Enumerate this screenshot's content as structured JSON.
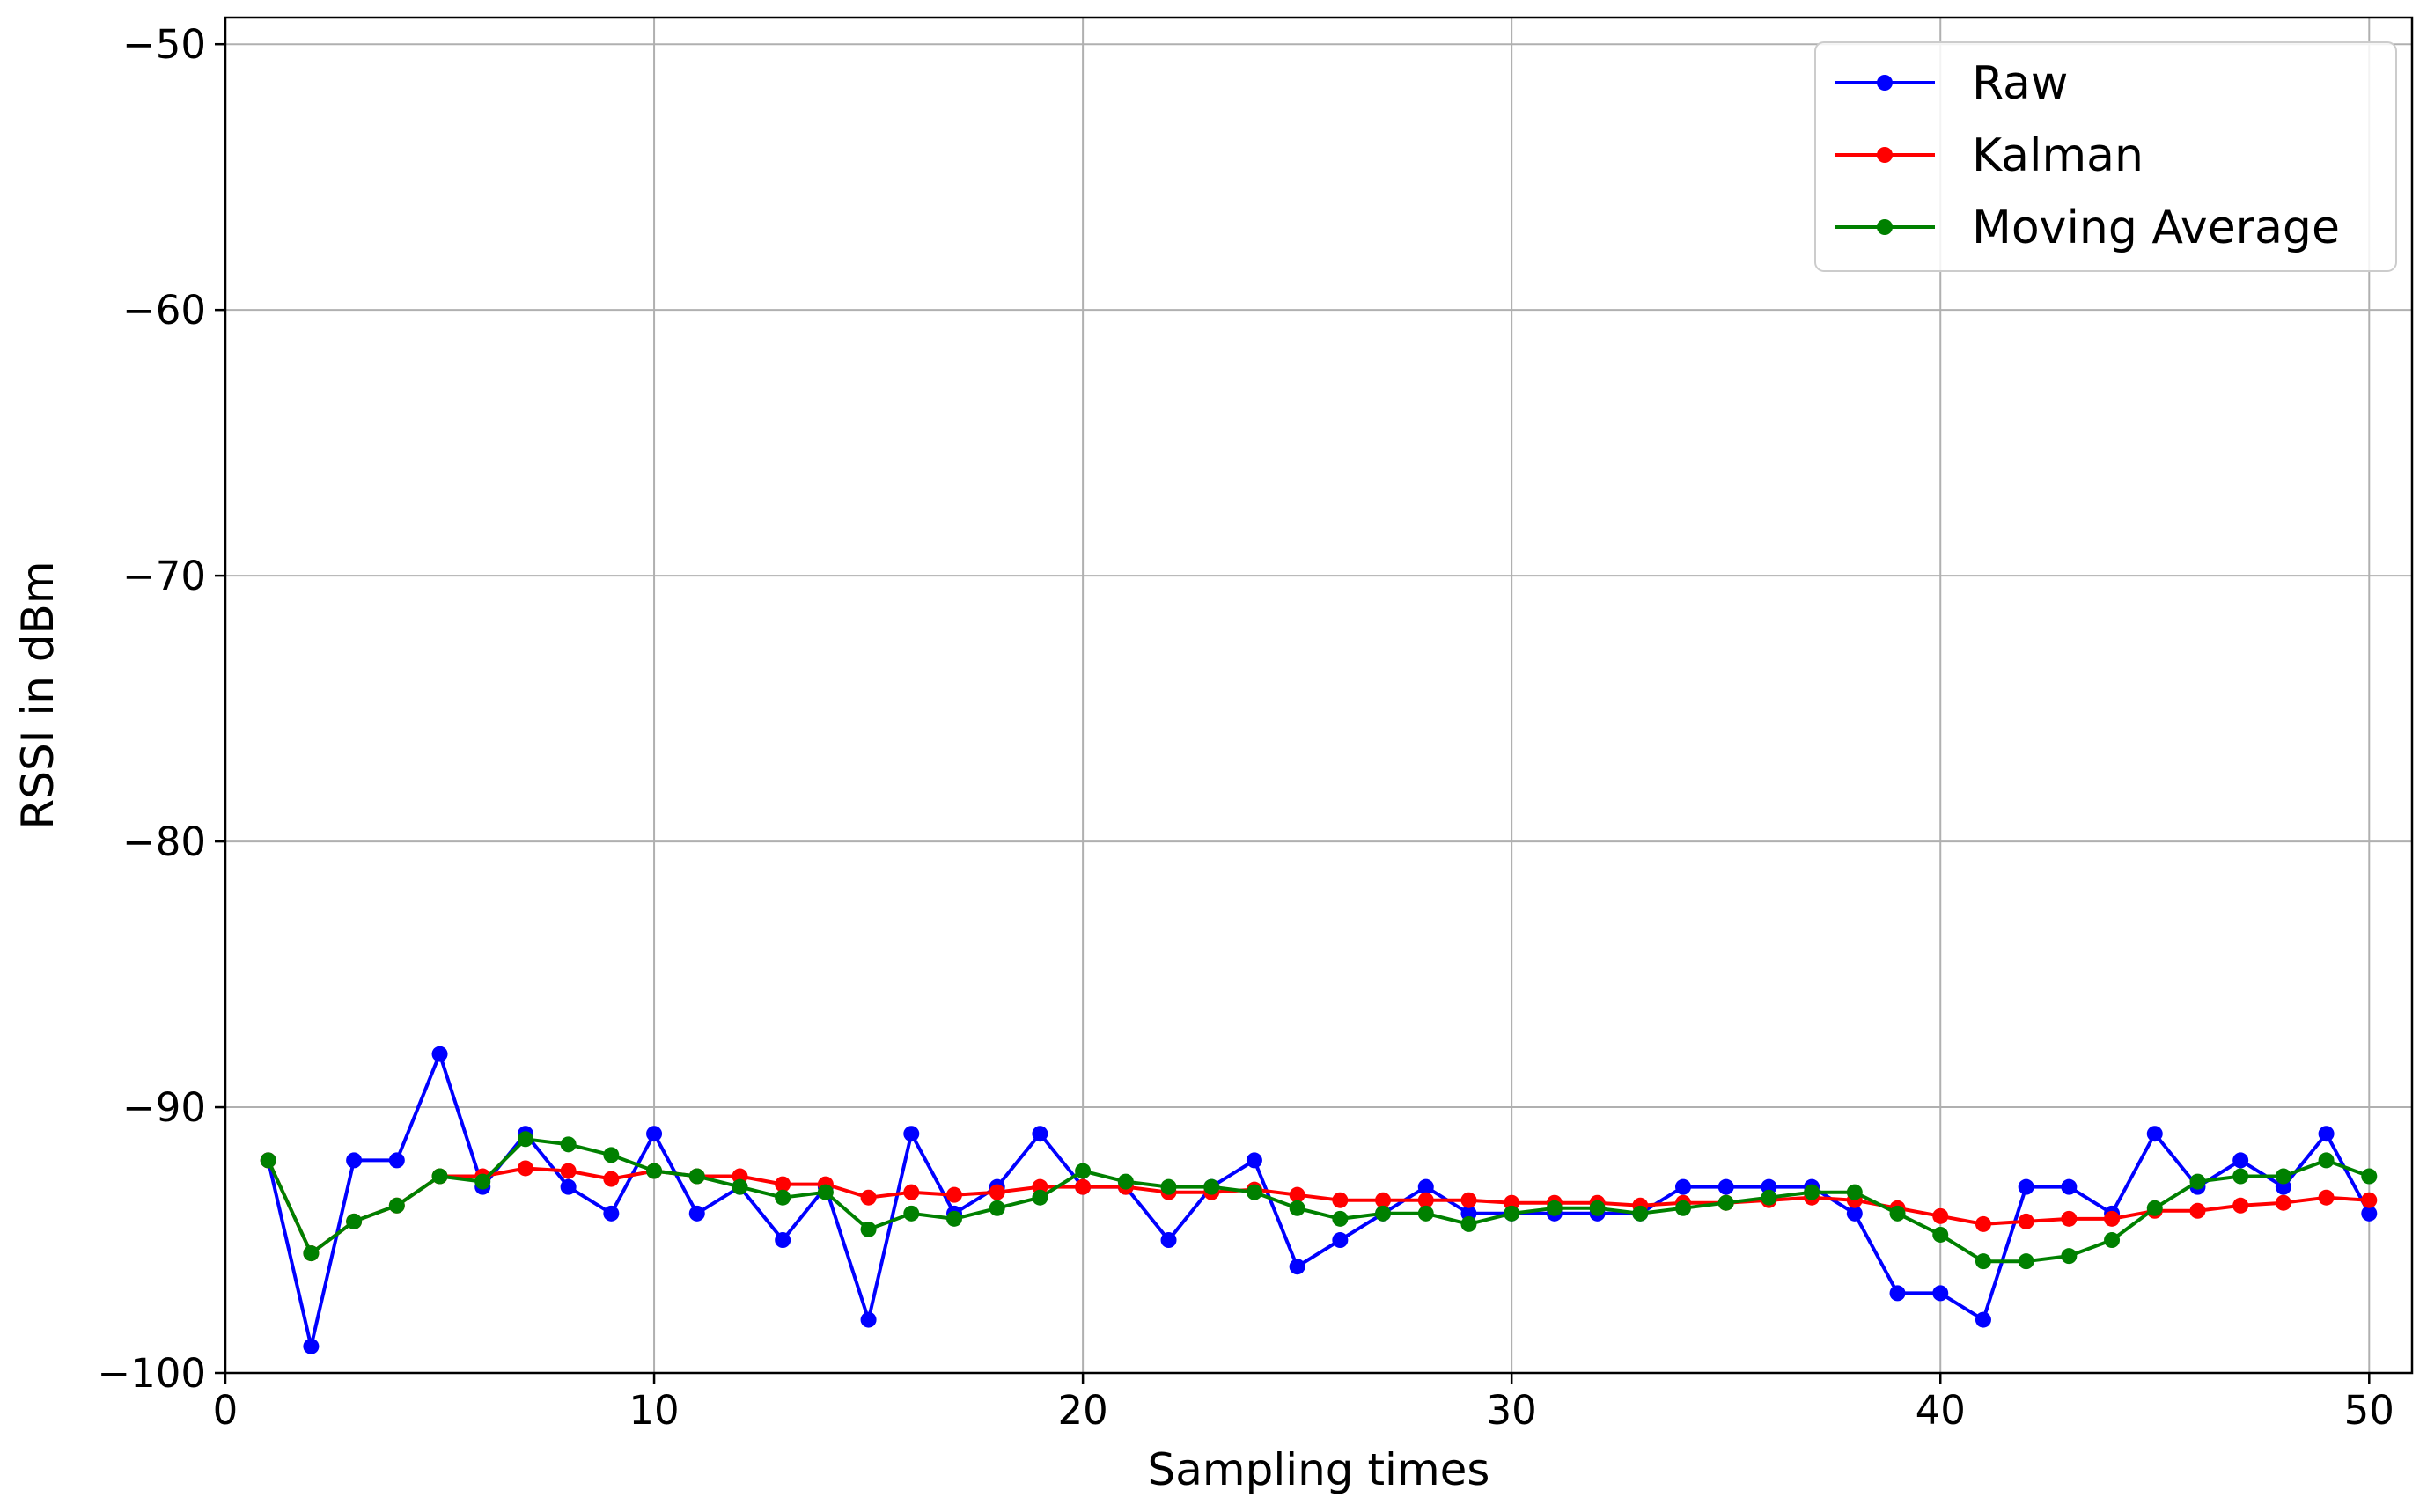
{
  "chart_data": {
    "type": "line",
    "title": "",
    "xlabel": "Sampling times",
    "ylabel": "RSSI in dBm",
    "xlim": [
      0,
      51
    ],
    "ylim": [
      -100,
      -49
    ],
    "xticks": [
      0,
      10,
      20,
      30,
      40,
      50
    ],
    "xtick_labels": [
      "0",
      "10",
      "20",
      "30",
      "40",
      "50"
    ],
    "yticks": [
      -100,
      -90,
      -80,
      -70,
      -60,
      -50
    ],
    "ytick_labels": [
      "−100",
      "−90",
      "−80",
      "−70",
      "−60",
      "−50"
    ],
    "grid": true,
    "legend_position": "top-right",
    "x": [
      1,
      2,
      3,
      4,
      5,
      6,
      7,
      8,
      9,
      10,
      11,
      12,
      13,
      14,
      15,
      16,
      17,
      18,
      19,
      20,
      21,
      22,
      23,
      24,
      25,
      26,
      27,
      28,
      29,
      30,
      31,
      32,
      33,
      34,
      35,
      36,
      37,
      38,
      39,
      40,
      41,
      42,
      43,
      44,
      45,
      46,
      47,
      48,
      49,
      50
    ],
    "series": [
      {
        "name": "Raw",
        "color": "#0000ff",
        "values": [
          -92,
          -99,
          -92,
          -92,
          -88,
          -93,
          -91,
          -93,
          -94,
          -91,
          -94,
          -93,
          -95,
          -93,
          -98,
          -91,
          -94,
          -93,
          -91,
          -93,
          -93,
          -95,
          -93,
          -92,
          -96,
          -95,
          -94,
          -93,
          -94,
          -94,
          -94,
          -94,
          -94,
          -93,
          -93,
          -93,
          -93,
          -94,
          -97,
          -97,
          -98,
          -93,
          -93,
          -94,
          -91,
          -93,
          -92,
          -93,
          -91,
          -94
        ]
      },
      {
        "name": "Kalman",
        "color": "#ff0000",
        "values": [
          -92,
          -95.5,
          -94.3,
          -93.7,
          -92.6,
          -92.6,
          -92.3,
          -92.4,
          -92.7,
          -92.4,
          -92.6,
          -92.6,
          -92.9,
          -92.9,
          -93.4,
          -93.2,
          -93.3,
          -93.2,
          -93.0,
          -93.0,
          -93.0,
          -93.2,
          -93.2,
          -93.1,
          -93.3,
          -93.5,
          -93.5,
          -93.5,
          -93.5,
          -93.6,
          -93.6,
          -93.6,
          -93.7,
          -93.6,
          -93.6,
          -93.5,
          -93.4,
          -93.5,
          -93.8,
          -94.1,
          -94.4,
          -94.3,
          -94.2,
          -94.2,
          -93.9,
          -93.9,
          -93.7,
          -93.6,
          -93.4,
          -93.5
        ]
      },
      {
        "name": "Moving Average",
        "color": "#008000",
        "values": [
          -92,
          -95.5,
          -94.3,
          -93.7,
          -92.6,
          -92.8,
          -91.2,
          -91.4,
          -91.8,
          -92.4,
          -92.6,
          -93.0,
          -93.4,
          -93.2,
          -94.6,
          -94.0,
          -94.2,
          -93.8,
          -93.4,
          -92.4,
          -92.8,
          -93.0,
          -93.0,
          -93.2,
          -93.8,
          -94.2,
          -94.0,
          -94.0,
          -94.4,
          -94.0,
          -93.8,
          -93.8,
          -94.0,
          -93.8,
          -93.6,
          -93.4,
          -93.2,
          -93.2,
          -94.0,
          -94.8,
          -95.8,
          -95.8,
          -95.6,
          -95.0,
          -93.8,
          -92.8,
          -92.6,
          -92.6,
          -92.0,
          -92.6
        ]
      }
    ]
  }
}
